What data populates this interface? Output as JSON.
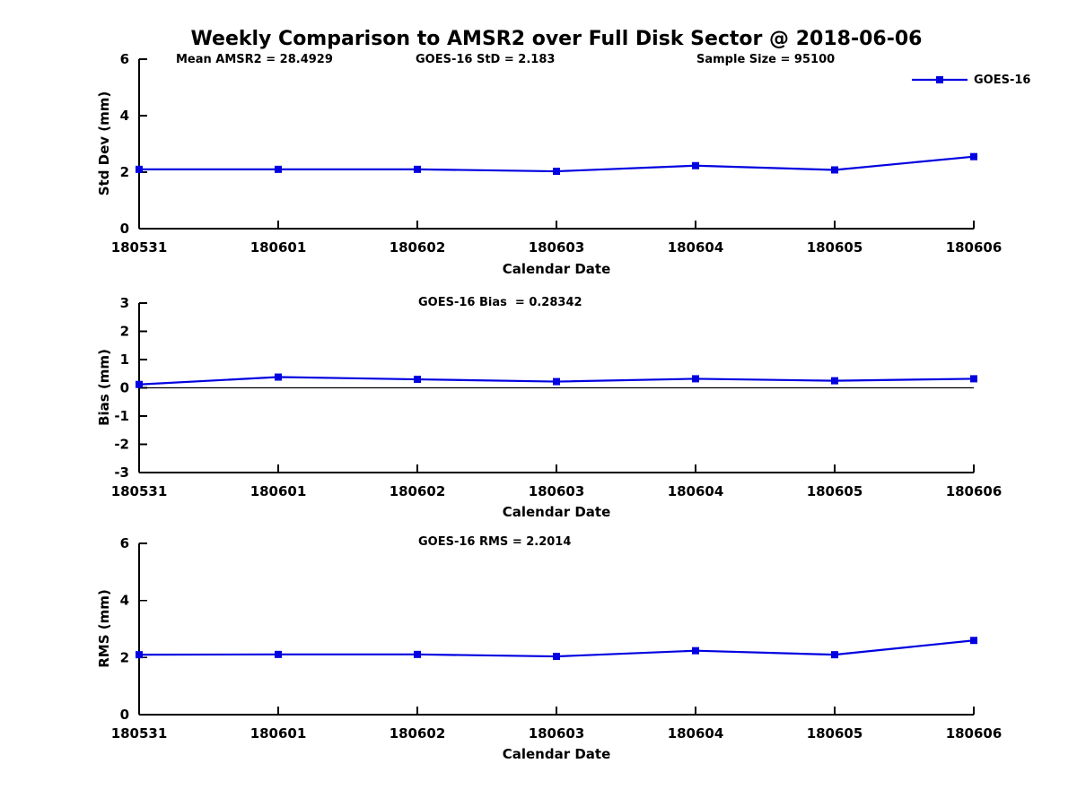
{
  "figure": {
    "title": "Weekly Comparison to AMSR2 over Full Disk Sector @ 2018-06-06",
    "line_color": "#0000e0",
    "axis_color": "#000000",
    "background_color": "#ffffff",
    "legend": {
      "label": "GOES-16",
      "position": "upper right",
      "marker": "square"
    }
  },
  "chart_data": [
    {
      "type": "line",
      "name": "std-dev",
      "ylabel": "Std Dev (mm)",
      "xlabel": "Calendar Date",
      "ylim": [
        0,
        6
      ],
      "yticks": [
        0,
        2,
        4,
        6
      ],
      "grid": false,
      "zero_line": false,
      "categories": [
        "180531",
        "180601",
        "180602",
        "180603",
        "180604",
        "180605",
        "180606"
      ],
      "series": [
        {
          "name": "GOES-16",
          "values": [
            2.1,
            2.1,
            2.1,
            2.03,
            2.23,
            2.08,
            2.55
          ]
        }
      ],
      "annotations": [
        {
          "text": "Mean AMSR2 = 28.4929"
        },
        {
          "text": "GOES-16 StD = 2.183"
        },
        {
          "text": "Sample Size = 95100"
        }
      ]
    },
    {
      "type": "line",
      "name": "bias",
      "ylabel": "Bias (mm)",
      "xlabel": "Calendar Date",
      "ylim": [
        -3,
        3
      ],
      "yticks": [
        3,
        2,
        1,
        0,
        -1,
        -2,
        -3
      ],
      "grid": false,
      "zero_line": true,
      "categories": [
        "180531",
        "180601",
        "180602",
        "180603",
        "180604",
        "180605",
        "180606"
      ],
      "series": [
        {
          "name": "GOES-16",
          "values": [
            0.12,
            0.38,
            0.3,
            0.22,
            0.32,
            0.25,
            0.32
          ]
        }
      ],
      "annotations": [
        {
          "text": "GOES-16 Bias  = 0.28342"
        }
      ]
    },
    {
      "type": "line",
      "name": "rms",
      "ylabel": "RMS (mm)",
      "xlabel": "Calendar Date",
      "ylim": [
        0,
        6
      ],
      "yticks": [
        0,
        2,
        4,
        6
      ],
      "grid": false,
      "zero_line": false,
      "categories": [
        "180531",
        "180601",
        "180602",
        "180603",
        "180604",
        "180605",
        "180606"
      ],
      "series": [
        {
          "name": "GOES-16",
          "values": [
            2.1,
            2.11,
            2.11,
            2.04,
            2.24,
            2.1,
            2.6
          ]
        }
      ],
      "annotations": [
        {
          "text": "GOES-16 RMS = 2.2014"
        }
      ]
    }
  ]
}
